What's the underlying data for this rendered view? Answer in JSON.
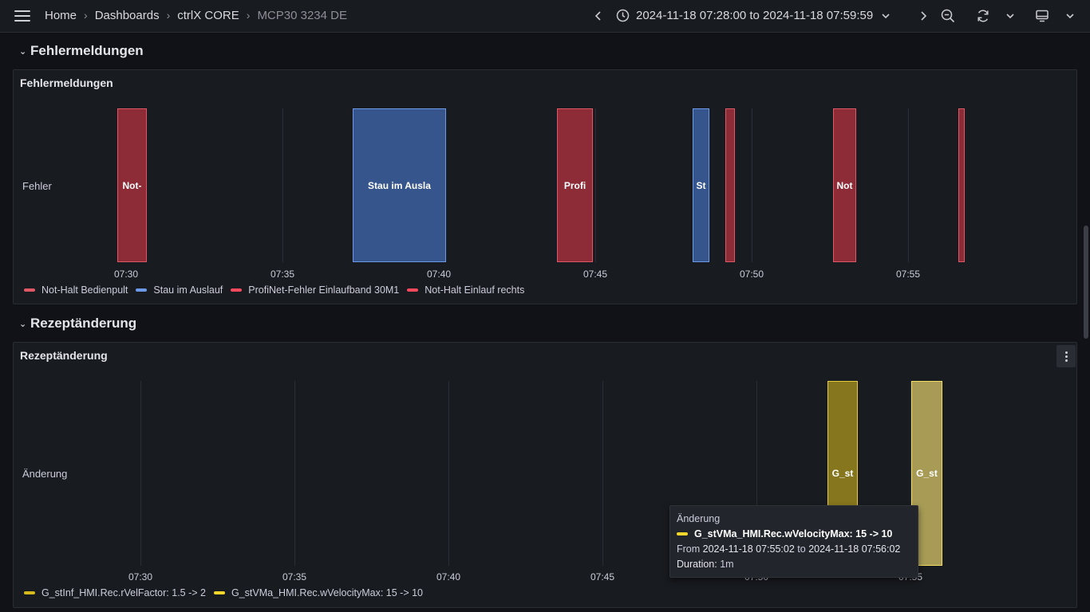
{
  "topbar": {
    "breadcrumbs": [
      "Home",
      "Dashboards",
      "ctrlX CORE",
      "MCP30 3234 DE"
    ],
    "time_range": "2024-11-18 07:28:00 to 2024-11-18 07:59:59"
  },
  "rows": {
    "errors": {
      "title": "Fehlermeldungen"
    },
    "recipe": {
      "title": "Rezeptänderung"
    }
  },
  "errors_panel": {
    "title": "Fehlermeldungen",
    "lane_label": "Fehler",
    "ticks": [
      "07:30",
      "07:35",
      "07:40",
      "07:45",
      "07:50",
      "07:55"
    ],
    "segments": [
      {
        "label": "Not-",
        "series": "Not-Halt Bedienpult",
        "color": "red"
      },
      {
        "label": "Stau im Ausla",
        "series": "Stau im Auslauf",
        "color": "blue"
      },
      {
        "label": "Profi",
        "series": "ProfiNet-Fehler Einlaufband 30M1",
        "color": "red"
      },
      {
        "label": "St",
        "series": "Stau im Auslauf",
        "color": "blue"
      },
      {
        "label": "",
        "series": "Not-Halt Einlauf rechts",
        "color": "red"
      },
      {
        "label": "Not",
        "series": "Not-Halt Bedienpult",
        "color": "red"
      },
      {
        "label": "",
        "series": "Not-Halt Einlauf rechts",
        "color": "red"
      }
    ],
    "legend": [
      {
        "label": "Not-Halt Bedienpult",
        "color": "#e05766"
      },
      {
        "label": "Stau im Auslauf",
        "color": "#6c99e8"
      },
      {
        "label": "ProfiNet-Fehler Einlaufband 30M1",
        "color": "#f2495c"
      },
      {
        "label": "Not-Halt Einlauf rechts",
        "color": "#f2495c"
      }
    ]
  },
  "recipe_panel": {
    "title": "Rezeptänderung",
    "lane_label": "Änderung",
    "ticks": [
      "07:30",
      "07:35",
      "07:40",
      "07:45",
      "07:50",
      "07:55"
    ],
    "segments": [
      {
        "label": "G_st",
        "series": "G_stInf_HMI.Rec.rVelFactor: 1.5 -> 2"
      },
      {
        "label": "G_st",
        "series": "G_stVMa_HMI.Rec.wVelocityMax: 15 -> 10"
      }
    ],
    "legend": [
      {
        "label": "G_stInf_HMI.Rec.rVelFactor: 1.5 -> 2",
        "color": "#d4b91a"
      },
      {
        "label": "G_stVMa_HMI.Rec.wVelocityMax: 15 -> 10",
        "color": "#f2d62a"
      }
    ]
  },
  "tooltip": {
    "header": "Änderung",
    "series": "G_stVMa_HMI.Rec.wVelocityMax: 15 -> 10",
    "from_label": "From",
    "from": "2024-11-18 07:55:02",
    "to_label": "to",
    "to": "2024-11-18 07:56:02",
    "duration_label": "Duration:",
    "duration": "1m"
  }
}
